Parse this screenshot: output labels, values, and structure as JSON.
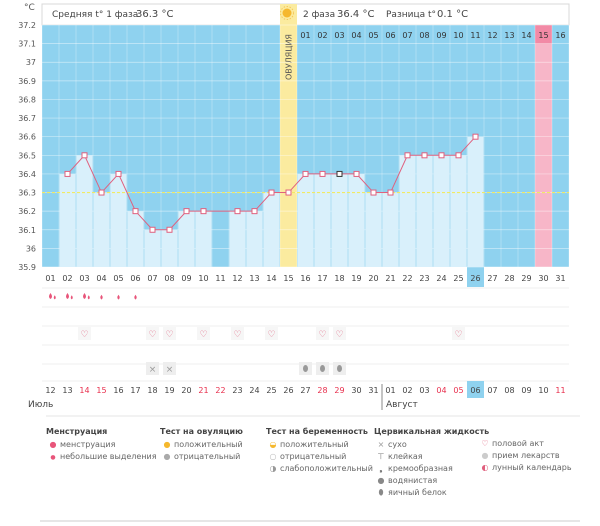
{
  "header": {
    "phase1_label": "Средняя t° 1 фаза",
    "phase1_value": "36.3 °C",
    "phase2_label": "2 фаза",
    "phase2_value": "36.4 °C",
    "diff_label": "Разница t°",
    "diff_value": "0.1 °C"
  },
  "ovulation_label": "ОВУЛЯЦИЯ",
  "colors": {
    "sky": "#8fd2ef",
    "bar": "#d9f0fb",
    "line": "#e0607e",
    "ovulation": "#fbeb9f",
    "pink": "#f7b6c8",
    "coverline": "#f2ea63"
  },
  "chart_data": {
    "type": "line",
    "ylabel": "°C",
    "ylim": [
      35.9,
      37.2
    ],
    "yticks": [
      "35.9",
      "36",
      "36.1",
      "36.2",
      "36.3",
      "36.4",
      "36.5",
      "36.6",
      "36.7",
      "36.8",
      "36.9",
      "37",
      "37.1",
      "37.2"
    ],
    "coverline": 36.3,
    "ovulation_day_index": 14,
    "x": [
      "01",
      "02",
      "03",
      "04",
      "05",
      "06",
      "07",
      "08",
      "09",
      "10",
      "11",
      "12",
      "13",
      "14",
      "15",
      "16",
      "17",
      "18",
      "19",
      "20",
      "21",
      "22",
      "23",
      "24",
      "25",
      "26",
      "27",
      "28",
      "29",
      "30",
      "31"
    ],
    "series": [
      {
        "values": [
          null,
          36.4,
          36.5,
          36.3,
          36.4,
          36.2,
          36.1,
          36.1,
          36.2,
          36.2,
          null,
          36.2,
          36.2,
          36.3,
          36.3,
          36.4,
          36.4,
          36.4,
          36.4,
          36.3,
          36.3,
          36.5,
          36.5,
          36.5,
          36.5,
          36.6,
          null,
          null,
          null,
          null,
          null
        ]
      }
    ],
    "bars_shown": [
      false,
      true,
      true,
      true,
      true,
      true,
      true,
      true,
      true,
      true,
      false,
      true,
      true,
      true,
      false,
      true,
      true,
      true,
      true,
      true,
      true,
      true,
      true,
      true,
      true,
      true,
      false,
      false,
      false,
      false,
      false
    ],
    "selected_point_index": 17
  },
  "phase2_days": [
    "01",
    "02",
    "03",
    "04",
    "05",
    "06",
    "07",
    "08",
    "09",
    "10",
    "11",
    "12",
    "13",
    "14",
    "15",
    "16"
  ],
  "phase2_highlight_day": "15",
  "highlight_cycle_day": "26",
  "calendar": {
    "dates": [
      "12",
      "13",
      "14",
      "15",
      "16",
      "17",
      "18",
      "19",
      "20",
      "21",
      "22",
      "23",
      "24",
      "25",
      "26",
      "27",
      "28",
      "29",
      "30",
      "31",
      "01",
      "02",
      "03",
      "04",
      "05",
      "06",
      "07",
      "08",
      "09",
      "10",
      "11"
    ],
    "red_dates": [
      "14",
      "15",
      "21",
      "22",
      "28",
      "29",
      "04",
      "05",
      "11"
    ],
    "today_index": 25,
    "month_july": "Июль",
    "month_august": "Август"
  },
  "markers": {
    "menstruation_big": [
      0,
      1,
      2
    ],
    "menstruation_small": [
      3,
      4,
      5
    ],
    "intercourse": [
      2,
      6,
      7,
      9,
      11,
      13,
      16,
      17,
      24
    ],
    "sticky": [
      6,
      7
    ],
    "eggwhite": [
      15,
      16,
      17
    ]
  },
  "legend": {
    "menstruation": {
      "title": "Менструация",
      "items": [
        "менструация",
        "небольшие выделения"
      ]
    },
    "ovulation_test": {
      "title": "Тест на овуляцию",
      "items": [
        "положительный",
        "отрицательный"
      ]
    },
    "pregnancy_test": {
      "title": "Тест на беременность",
      "items": [
        "положительный",
        "отрицательный",
        "слабоположительный"
      ]
    },
    "cervical": {
      "title": "Цервикальная жидкость",
      "items": [
        "сухо",
        "клейкая",
        "кремообразная",
        "водянистая",
        "яичный белок"
      ]
    },
    "other": {
      "items": [
        "половой акт",
        "прием лекарств",
        "лунный календарь"
      ]
    }
  }
}
